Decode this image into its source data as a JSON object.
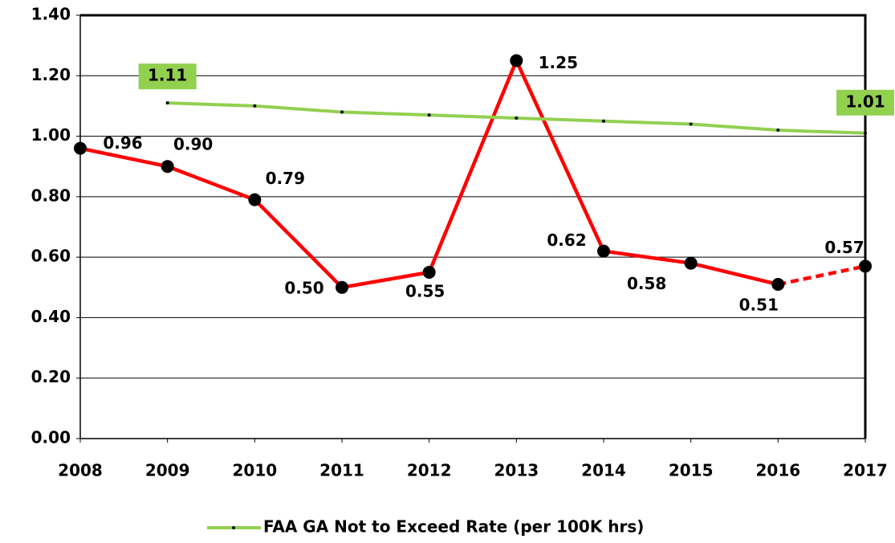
{
  "chart_data": {
    "type": "line",
    "categories": [
      "2008",
      "2009",
      "2010",
      "2011",
      "2012",
      "2013",
      "2014",
      "2015",
      "2016",
      "2017"
    ],
    "series": [
      {
        "color": "#ff0000",
        "marker_color": "#000000",
        "dash_last_segment": true,
        "values": [
          0.96,
          0.9,
          0.79,
          0.5,
          0.55,
          1.25,
          0.62,
          0.58,
          0.51,
          0.57
        ],
        "value_labels": [
          "0.96",
          "0.90",
          "0.79",
          "0.50",
          "0.55",
          "1.25",
          "0.62",
          "0.58",
          "0.51",
          "0.57"
        ]
      },
      {
        "name": "FAA GA Not to Exceed Rate (per 100K hrs)",
        "color": "#92d050",
        "values": [
          null,
          1.11,
          1.1,
          1.08,
          1.07,
          1.06,
          1.05,
          1.04,
          1.02,
          1.01
        ],
        "value_labels": [
          null,
          "1.11",
          null,
          null,
          null,
          null,
          null,
          null,
          null,
          "1.01"
        ]
      }
    ],
    "ylim": [
      0,
      1.4
    ],
    "yticks": [
      {
        "value": 0,
        "label": "0.00"
      },
      {
        "value": 0.2,
        "label": "0.20"
      },
      {
        "value": 0.4,
        "label": "0.40"
      },
      {
        "value": 0.6,
        "label": "0.60"
      },
      {
        "value": 0.8,
        "label": "0.80"
      },
      {
        "value": 1.0,
        "label": "1.00"
      },
      {
        "value": 1.2,
        "label": "1.20"
      },
      {
        "value": 1.4,
        "label": "1.40"
      }
    ],
    "grid": true,
    "legend": "bottom"
  }
}
